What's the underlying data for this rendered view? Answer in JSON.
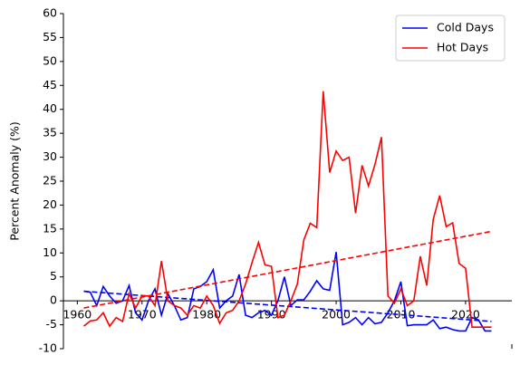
{
  "chart_data": {
    "type": "line",
    "ylabel": "Percent Anomaly (%)",
    "x": [
      1961,
      1962,
      1963,
      1964,
      1965,
      1966,
      1967,
      1968,
      1969,
      1970,
      1971,
      1972,
      1973,
      1974,
      1975,
      1976,
      1977,
      1978,
      1979,
      1980,
      1981,
      1982,
      1983,
      1984,
      1985,
      1986,
      1987,
      1988,
      1989,
      1990,
      1991,
      1992,
      1993,
      1994,
      1995,
      1996,
      1997,
      1998,
      1999,
      2000,
      2001,
      2002,
      2003,
      2004,
      2005,
      2006,
      2007,
      2008,
      2009,
      2010,
      2011,
      2012,
      2013,
      2014,
      2015,
      2016,
      2017,
      2018,
      2019,
      2020,
      2021,
      2022,
      2023,
      2024
    ],
    "series": [
      {
        "name": "Cold Days",
        "color": "#0000ff",
        "values": [
          2,
          1.8,
          -1,
          3,
          1,
          -0.5,
          0,
          3.2,
          -2.5,
          -4,
          0,
          2.5,
          -3,
          1.5,
          -1,
          -4,
          -3.5,
          2.5,
          3,
          4,
          6.5,
          -1.5,
          0,
          1,
          5.5,
          -3,
          -3.5,
          -2.5,
          -2,
          -3,
          0,
          5,
          -1,
          0.2,
          0.2,
          2,
          4.2,
          2.5,
          2.2,
          10.2,
          -5,
          -4.5,
          -3.5,
          -5,
          -3.5,
          -4.8,
          -4.5,
          -2.5,
          0,
          4,
          -5.2,
          -5,
          -5,
          -5,
          -4,
          -5.8,
          -5.5,
          -6,
          -6.3,
          -6.3,
          -3.5,
          -4,
          -6.3,
          -6.3
        ],
        "trend": {
          "x": [
            1961,
            2024
          ],
          "values": [
            2,
            -4.3
          ]
        }
      },
      {
        "name": "Hot Days",
        "color": "#ff0000",
        "values": [
          -5.3,
          -4.2,
          -4,
          -2.5,
          -5.3,
          -3.5,
          -4.3,
          1.5,
          -1.5,
          1,
          1,
          -1,
          8.3,
          0,
          -1,
          -1.5,
          -3,
          -1,
          -1.5,
          1,
          -1,
          -4.7,
          -2.5,
          -2,
          0,
          3.5,
          8,
          12.2,
          7.5,
          7.2,
          -3.5,
          -3,
          0,
          3.5,
          12.7,
          16.2,
          15.3,
          43.8,
          26.8,
          31.3,
          29.3,
          30,
          18.3,
          28.3,
          24,
          28.5,
          34.2,
          1,
          -0.5,
          2.5,
          -1,
          0,
          9.3,
          3.2,
          17,
          22,
          15.5,
          16.3,
          7.8,
          6.8,
          -5.5,
          -5.5,
          -5.5,
          -5.5
        ],
        "trend": {
          "x": [
            1961,
            2024
          ],
          "values": [
            -1.5,
            14.5
          ]
        }
      }
    ],
    "xlim": [
      1957.85,
      2027.15
    ],
    "xticks": [
      1960,
      1970,
      1980,
      1990,
      2000,
      2010,
      2020
    ],
    "ylim": [
      -10,
      60
    ],
    "yticks": [
      -10,
      -5,
      0,
      5,
      10,
      15,
      20,
      25,
      30,
      35,
      40,
      45,
      50,
      55,
      60
    ],
    "legend": "upper right"
  }
}
